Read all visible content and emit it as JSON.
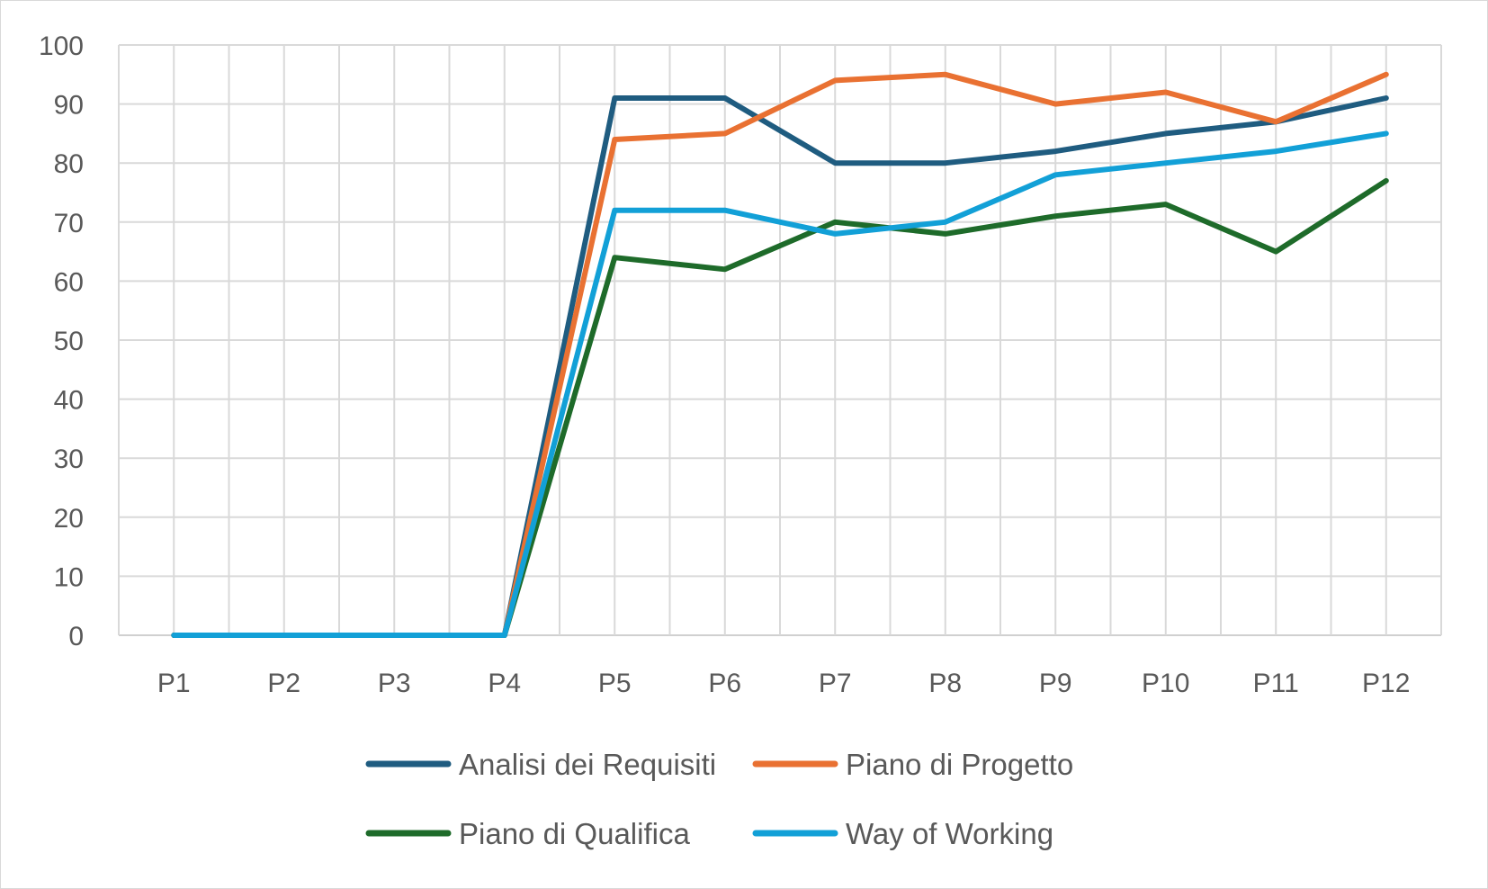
{
  "chart_data": {
    "type": "line",
    "categories": [
      "P1",
      "P2",
      "P3",
      "P4",
      "P5",
      "P6",
      "P7",
      "P8",
      "P9",
      "P10",
      "P11",
      "P12"
    ],
    "ylim": [
      0,
      100
    ],
    "yticks": [
      0,
      10,
      20,
      30,
      40,
      50,
      60,
      70,
      80,
      90,
      100
    ],
    "grid": true,
    "legend_position": "bottom",
    "series": [
      {
        "name": "Analisi dei Requisiti",
        "color": "#1f5c80",
        "values": [
          0,
          0,
          0,
          0,
          91,
          91,
          80,
          80,
          82,
          85,
          87,
          91
        ]
      },
      {
        "name": "Piano di Progetto",
        "color": "#e97132",
        "values": [
          0,
          0,
          0,
          0,
          84,
          85,
          94,
          95,
          90,
          92,
          87,
          95
        ]
      },
      {
        "name": "Piano di Qualifica",
        "color": "#1e6b2a",
        "values": [
          0,
          0,
          0,
          0,
          64,
          62,
          70,
          68,
          71,
          73,
          65,
          77
        ]
      },
      {
        "name": "Way of Working",
        "color": "#12a0d7",
        "values": [
          0,
          0,
          0,
          0,
          72,
          72,
          68,
          70,
          78,
          80,
          82,
          85
        ]
      }
    ]
  }
}
